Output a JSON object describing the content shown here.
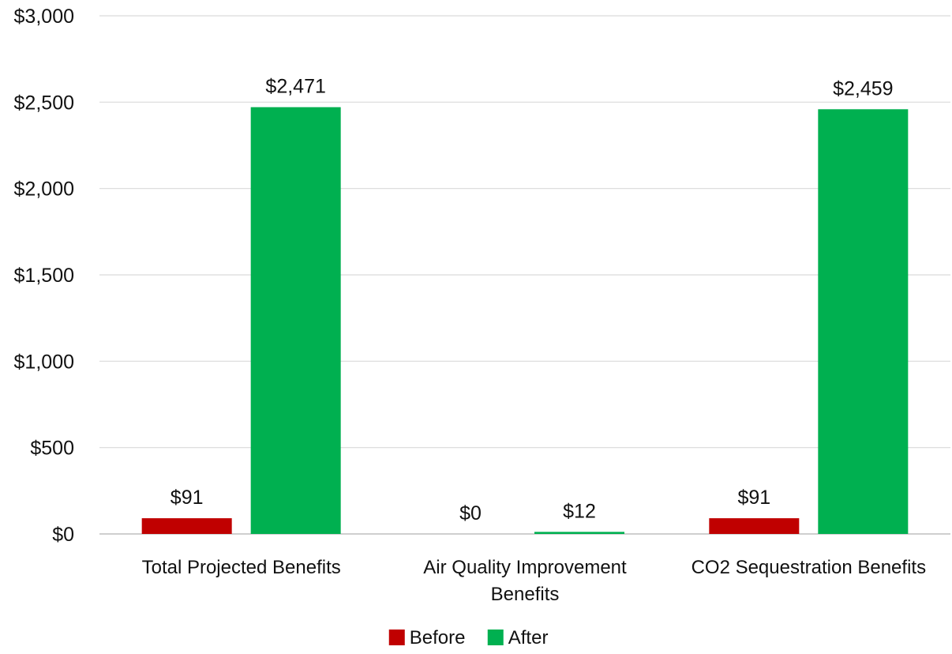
{
  "chart_data": {
    "type": "bar",
    "categories": [
      [
        "Total Projected Benefits"
      ],
      [
        "Air Quality Improvement",
        "Benefits"
      ],
      [
        "CO2 Sequestration Benefits"
      ]
    ],
    "series": [
      {
        "name": "Before",
        "values": [
          91,
          0,
          91
        ],
        "labels": [
          "$91",
          "$0",
          "$91"
        ],
        "color": "#c00000"
      },
      {
        "name": "After",
        "values": [
          2471,
          12,
          2459
        ],
        "labels": [
          "$2,471",
          "$12",
          "$2,459"
        ],
        "color": "#00b050"
      }
    ],
    "ylim": [
      0,
      3000
    ],
    "yticks": [
      0,
      500,
      1000,
      1500,
      2000,
      2500,
      3000
    ],
    "ytick_labels": [
      "$0",
      "$500",
      "$1,000",
      "$1,500",
      "$2,000",
      "$2,500",
      "$3,000"
    ],
    "grid": true,
    "legend": "bottom",
    "title": "",
    "xlabel": "",
    "ylabel": "",
    "colors": {
      "gridline": "#d9d9d9",
      "axis": "#bfbfbf",
      "text": "#111111",
      "background": "#ffffff"
    }
  }
}
